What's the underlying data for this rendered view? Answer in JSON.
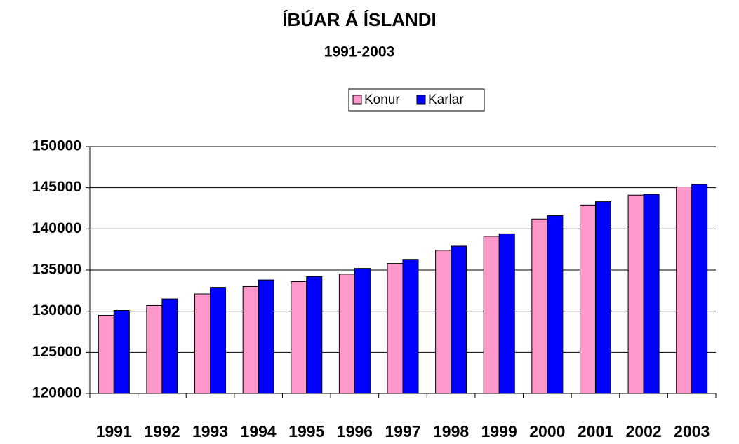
{
  "chart_data": {
    "type": "bar",
    "title": "ÍBÚAR Á ÍSLANDI",
    "subtitle": "1991-2003",
    "categories": [
      "1991",
      "1992",
      "1993",
      "1994",
      "1995",
      "1996",
      "1997",
      "1998",
      "1999",
      "2000",
      "2001",
      "2002",
      "2003"
    ],
    "series": [
      {
        "name": "Konur",
        "color": "#ff99cc",
        "values": [
          129500,
          130700,
          132100,
          133000,
          133600,
          134500,
          135800,
          137400,
          139100,
          141200,
          142900,
          144100,
          145100
        ]
      },
      {
        "name": "Karlar",
        "color": "#0000ff",
        "values": [
          130100,
          131500,
          132900,
          133800,
          134200,
          135200,
          136300,
          137900,
          139400,
          141600,
          143300,
          144200,
          145400
        ]
      }
    ],
    "ylim": [
      120000,
      150000
    ],
    "yticks": [
      120000,
      125000,
      130000,
      135000,
      140000,
      145000,
      150000
    ],
    "grid": true,
    "legend": "top"
  }
}
